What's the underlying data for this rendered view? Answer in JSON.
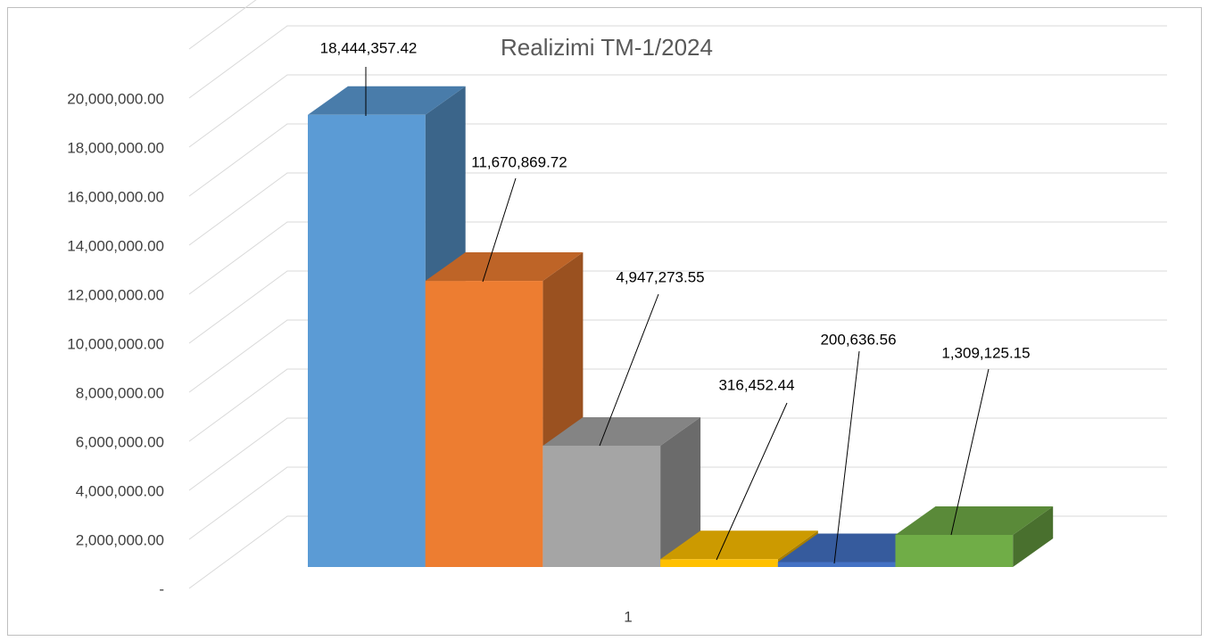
{
  "chart_data": {
    "type": "bar3d",
    "title": "Realizimi TM-1/2024",
    "categories": [
      "1"
    ],
    "series": [
      {
        "color": "#5b9bd5",
        "values": [
          18444357.42
        ],
        "value_labels": [
          "18,444,357.42"
        ]
      },
      {
        "color": "#ed7d31",
        "values": [
          11670869.72
        ],
        "value_labels": [
          "11,670,869.72"
        ]
      },
      {
        "color": "#a5a5a5",
        "values": [
          4947273.55
        ],
        "value_labels": [
          "4,947,273.55"
        ]
      },
      {
        "color": "#ffc000",
        "values": [
          316452.44
        ],
        "value_labels": [
          "316,452.44"
        ]
      },
      {
        "color": "#4472c4",
        "values": [
          200636.56
        ],
        "value_labels": [
          "200,636.56"
        ]
      },
      {
        "color": "#70ad47",
        "values": [
          1309125.15
        ],
        "value_labels": [
          "1,309,125.15"
        ]
      }
    ],
    "ylim": [
      0,
      22000000
    ],
    "yticks": [
      {
        "value": 0,
        "label": "-"
      },
      {
        "value": 2000000,
        "label": "2,000,000.00"
      },
      {
        "value": 4000000,
        "label": "4,000,000.00"
      },
      {
        "value": 6000000,
        "label": "6,000,000.00"
      },
      {
        "value": 8000000,
        "label": "8,000,000.00"
      },
      {
        "value": 10000000,
        "label": "10,000,000.00"
      },
      {
        "value": 12000000,
        "label": "12,000,000.00"
      },
      {
        "value": 14000000,
        "label": "14,000,000.00"
      },
      {
        "value": 16000000,
        "label": "16,000,000.00"
      },
      {
        "value": 18000000,
        "label": "18,000,000.00"
      },
      {
        "value": 20000000,
        "label": "20,000,000.00"
      }
    ],
    "grid": true
  }
}
